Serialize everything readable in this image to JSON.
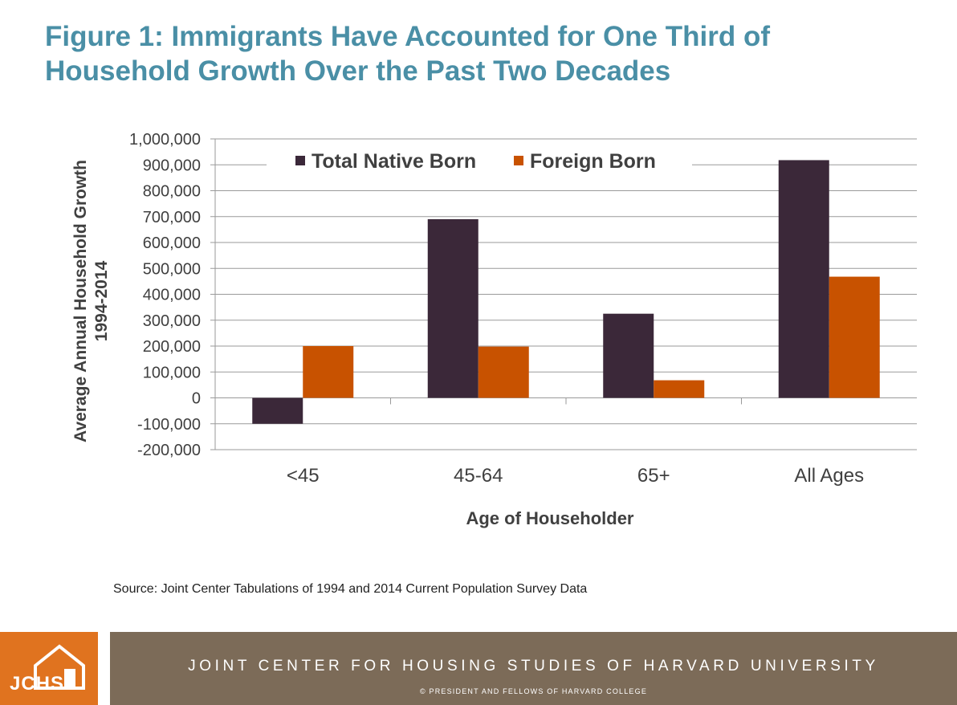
{
  "title": {
    "line1": "Figure 1: Immigrants Have Accounted for One Third of",
    "line2": "Household Growth Over the Past Two Decades"
  },
  "chart_data": {
    "type": "bar",
    "categories": [
      "<45",
      "45-64",
      "65+",
      "All Ages"
    ],
    "series": [
      {
        "name": "Total Native Born",
        "values": [
          -100000,
          690000,
          325000,
          918000
        ],
        "color": "#3b2839"
      },
      {
        "name": "Foreign Born",
        "values": [
          200000,
          198000,
          68000,
          468000
        ],
        "color": "#c85200"
      }
    ],
    "xlabel": "Age of Householder",
    "ylabel_line1": "Average Annual Household Growth",
    "ylabel_line2": "1994-2014",
    "ylim": [
      -200000,
      1000000
    ],
    "yticks": [
      1000000,
      900000,
      800000,
      700000,
      600000,
      500000,
      400000,
      300000,
      200000,
      100000,
      0,
      -100000,
      -200000
    ],
    "ytick_labels": [
      "1,000,000",
      "900,000",
      "800,000",
      "700,000",
      "600,000",
      "500,000",
      "400,000",
      "300,000",
      "200,000",
      "100,000",
      "0",
      "-100,000",
      "-200,000"
    ],
    "grid": true,
    "legend_position": "top"
  },
  "source": "Source: Joint Center Tabulations of 1994 and 2014 Current Population Survey Data",
  "footer": {
    "logo_text": "JCHS",
    "org": "JOINT CENTER FOR HOUSING STUDIES OF HARVARD UNIVERSITY",
    "copyright": "© PRESIDENT AND FELLOWS OF HARVARD COLLEGE",
    "logo_color": "#e0731f",
    "band_color": "#7c6b58"
  }
}
